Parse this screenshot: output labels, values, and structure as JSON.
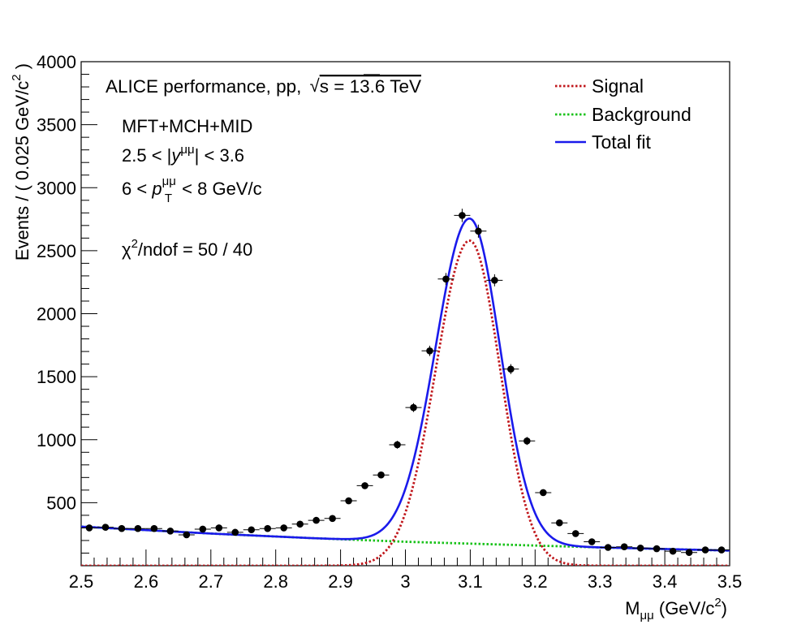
{
  "chart_data": {
    "type": "scatter",
    "header": "ALICE performance, pp, ",
    "sqrt_s_label": "s = 13.6 TeV",
    "annotations": {
      "detector": "MFT+MCH+MID",
      "rapidity": {
        "lo": "2.5 < |",
        "var": "y",
        "sup": "μμ",
        "hi": "| < 3.6"
      },
      "pt": {
        "lo": "6 < ",
        "var": "p",
        "sup": "μμ",
        "sub": "T",
        "hi": " < 8 GeV/c"
      },
      "chi2": {
        "sym": "χ",
        "sup": "2",
        "rest": "/ndof = 50 / 40"
      }
    },
    "xlabel": {
      "main": "M",
      "sub": "μμ",
      "unit": " (GeV/c",
      "sup": "2",
      "close": ")"
    },
    "ylabel": {
      "main": "Events / ( 0.025 GeV/c",
      "sup": "2",
      "close": " )"
    },
    "xlim": [
      2.5,
      3.5
    ],
    "ylim": [
      0,
      4000
    ],
    "xticks": [
      "2.5",
      "2.6",
      "2.7",
      "2.8",
      "2.9",
      "3",
      "3.1",
      "3.2",
      "3.3",
      "3.4",
      "3.5"
    ],
    "yticks": [
      "500",
      "1000",
      "1500",
      "2000",
      "2500",
      "3000",
      "3500",
      "4000"
    ],
    "legend": {
      "position": "top-right",
      "entries": [
        {
          "label": "Signal",
          "color": "#c0161b",
          "style": "dotted"
        },
        {
          "label": "Background",
          "color": "#19c21a",
          "style": "dotted"
        },
        {
          "label": "Total fit",
          "color": "#1a1aeb",
          "style": "solid"
        }
      ]
    },
    "data_series": {
      "bin_half_width": 0.0125,
      "x": [
        2.5125,
        2.5375,
        2.5625,
        2.5875,
        2.6125,
        2.6375,
        2.6625,
        2.6875,
        2.7125,
        2.7375,
        2.7625,
        2.7875,
        2.8125,
        2.8375,
        2.8625,
        2.8875,
        2.9125,
        2.9375,
        2.9625,
        2.9875,
        3.0125,
        3.0375,
        3.0625,
        3.0875,
        3.1125,
        3.1375,
        3.1625,
        3.1875,
        3.2125,
        3.2375,
        3.2625,
        3.2875,
        3.3125,
        3.3375,
        3.3625,
        3.3875,
        3.4125,
        3.4375,
        3.4625,
        3.4875
      ],
      "y": [
        300,
        305,
        295,
        295,
        295,
        275,
        245,
        290,
        300,
        265,
        285,
        295,
        300,
        330,
        360,
        375,
        515,
        635,
        720,
        960,
        1255,
        1705,
        2275,
        2780,
        2655,
        2265,
        1560,
        990,
        580,
        340,
        255,
        190,
        145,
        150,
        140,
        135,
        115,
        105,
        125,
        125
      ],
      "yerr": [
        18,
        18,
        18,
        18,
        18,
        17,
        16,
        17,
        18,
        17,
        17,
        18,
        18,
        19,
        19,
        20,
        23,
        25,
        27,
        31,
        35,
        41,
        48,
        53,
        52,
        48,
        40,
        32,
        24,
        19,
        16,
        14,
        12,
        12,
        12,
        12,
        11,
        11,
        11,
        11
      ]
    },
    "fit": {
      "mean": 3.099,
      "sigma_left": 0.052,
      "sigma_right": 0.047,
      "signal_amp": 2580,
      "background": [
        [
          2.5,
          310
        ],
        [
          2.7,
          255
        ],
        [
          2.85,
          220
        ],
        [
          3.0,
          190
        ],
        [
          3.2,
          160
        ],
        [
          3.3,
          145
        ],
        [
          3.5,
          120
        ]
      ]
    }
  }
}
